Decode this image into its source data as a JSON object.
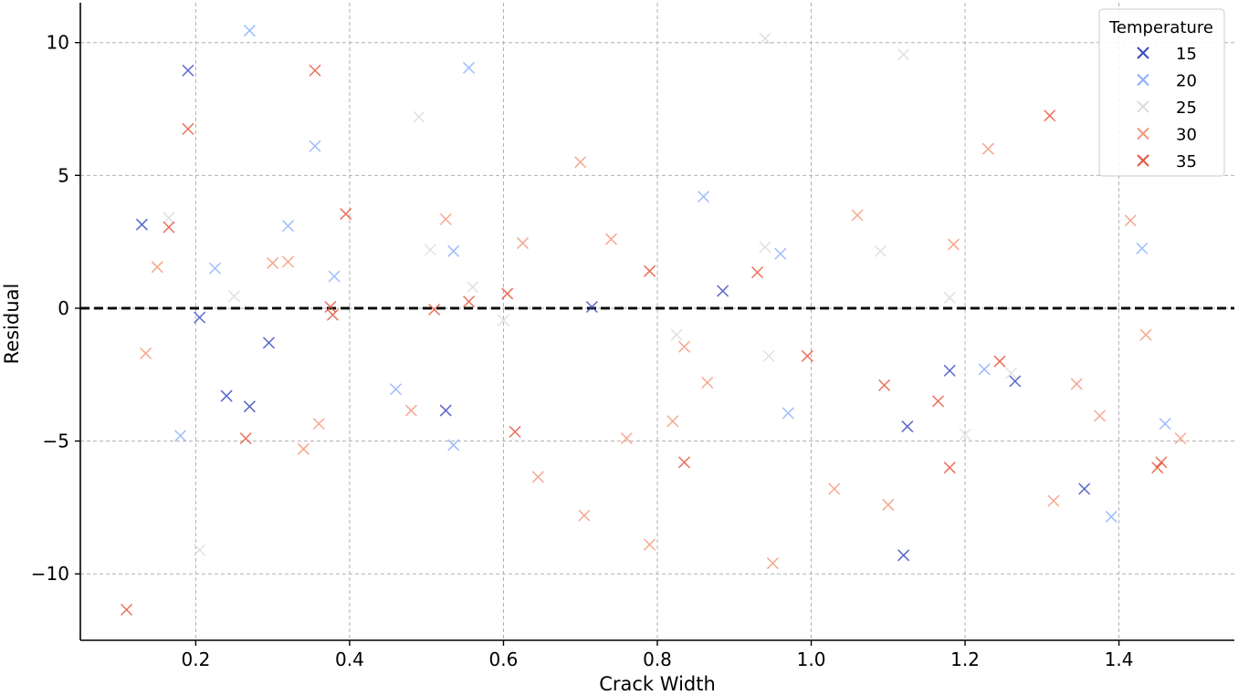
{
  "chart_data": {
    "type": "scatter",
    "title": "",
    "xlabel": "Crack Width",
    "ylabel": "Residual",
    "xlim": [
      0.05,
      1.55
    ],
    "ylim": [
      -12.5,
      11.5
    ],
    "xticks": [
      0.2,
      0.4,
      0.6,
      0.8,
      1.0,
      1.2,
      1.4
    ],
    "xtick_labels": [
      "0.2",
      "0.4",
      "0.6",
      "0.8",
      "1.0",
      "1.2",
      "1.4"
    ],
    "yticks": [
      -10,
      -5,
      0,
      5,
      10
    ],
    "ytick_labels": [
      "−10",
      "−5",
      "0",
      "5",
      "10"
    ],
    "grid": true,
    "reference_line": {
      "y": 0,
      "style": "dashed",
      "color": "#000000"
    },
    "marker": "x",
    "legend": {
      "title": "Temperature",
      "position": "top-right"
    },
    "series": [
      {
        "name": "15",
        "color": "#3B4CC0",
        "points": [
          [
            0.13,
            3.15
          ],
          [
            0.19,
            8.95
          ],
          [
            0.205,
            -0.35
          ],
          [
            0.24,
            -3.3
          ],
          [
            0.27,
            -3.7
          ],
          [
            0.295,
            -1.3
          ],
          [
            0.525,
            -3.85
          ],
          [
            0.715,
            0.05
          ],
          [
            0.885,
            0.65
          ],
          [
            1.12,
            -9.3
          ],
          [
            1.125,
            -4.45
          ],
          [
            1.18,
            -2.35
          ],
          [
            1.265,
            -2.75
          ],
          [
            1.355,
            -6.8
          ]
        ]
      },
      {
        "name": "20",
        "color": "#8DB0FE",
        "points": [
          [
            0.18,
            -4.8
          ],
          [
            0.225,
            1.5
          ],
          [
            0.27,
            10.45
          ],
          [
            0.32,
            3.1
          ],
          [
            0.355,
            6.1
          ],
          [
            0.38,
            1.2
          ],
          [
            0.46,
            -3.05
          ],
          [
            0.535,
            2.15
          ],
          [
            0.535,
            -5.15
          ],
          [
            0.555,
            9.05
          ],
          [
            0.86,
            4.2
          ],
          [
            0.96,
            2.05
          ],
          [
            0.97,
            -3.95
          ],
          [
            1.225,
            -2.3
          ],
          [
            1.43,
            2.25
          ],
          [
            1.46,
            -4.35
          ],
          [
            1.39,
            -7.85
          ]
        ]
      },
      {
        "name": "25",
        "color": "#DDDCDC",
        "points": [
          [
            0.165,
            3.4
          ],
          [
            0.205,
            -9.1
          ],
          [
            0.25,
            0.45
          ],
          [
            0.49,
            7.2
          ],
          [
            0.505,
            2.2
          ],
          [
            0.56,
            0.8
          ],
          [
            0.825,
            -1.0
          ],
          [
            0.94,
            10.15
          ],
          [
            0.94,
            2.3
          ],
          [
            0.945,
            -1.8
          ],
          [
            1.09,
            2.15
          ],
          [
            1.12,
            9.55
          ],
          [
            1.18,
            0.4
          ],
          [
            1.2,
            -4.75
          ],
          [
            1.26,
            -2.45
          ],
          [
            0.6,
            -0.45
          ]
        ]
      },
      {
        "name": "30",
        "color": "#F49A7B",
        "points": [
          [
            0.135,
            -1.7
          ],
          [
            0.15,
            1.55
          ],
          [
            0.3,
            1.7
          ],
          [
            0.32,
            1.75
          ],
          [
            0.34,
            -5.3
          ],
          [
            0.36,
            -4.35
          ],
          [
            0.48,
            -3.85
          ],
          [
            0.525,
            3.35
          ],
          [
            0.625,
            2.45
          ],
          [
            0.645,
            -6.35
          ],
          [
            0.7,
            5.5
          ],
          [
            0.705,
            -7.8
          ],
          [
            0.74,
            2.6
          ],
          [
            0.76,
            -4.9
          ],
          [
            0.79,
            -8.9
          ],
          [
            0.82,
            -4.25
          ],
          [
            0.835,
            -1.45
          ],
          [
            0.865,
            -2.8
          ],
          [
            0.95,
            -9.6
          ],
          [
            1.03,
            -6.8
          ],
          [
            1.06,
            3.5
          ],
          [
            1.1,
            -7.4
          ],
          [
            1.185,
            2.4
          ],
          [
            1.23,
            6.0
          ],
          [
            1.315,
            -7.25
          ],
          [
            1.345,
            -2.85
          ],
          [
            1.375,
            -4.05
          ],
          [
            1.415,
            3.3
          ],
          [
            1.435,
            -1.0
          ],
          [
            1.48,
            -4.9
          ]
        ]
      },
      {
        "name": "35",
        "color": "#E7553F",
        "points": [
          [
            0.11,
            -11.35
          ],
          [
            0.165,
            3.05
          ],
          [
            0.19,
            6.75
          ],
          [
            0.265,
            -4.9
          ],
          [
            0.355,
            8.95
          ],
          [
            0.375,
            0.05
          ],
          [
            0.378,
            -0.25
          ],
          [
            0.395,
            3.55
          ],
          [
            0.51,
            -0.05
          ],
          [
            0.555,
            0.25
          ],
          [
            0.605,
            0.55
          ],
          [
            0.615,
            -4.65
          ],
          [
            0.79,
            1.4
          ],
          [
            0.835,
            -5.8
          ],
          [
            0.93,
            1.35
          ],
          [
            0.995,
            -1.8
          ],
          [
            1.095,
            -2.9
          ],
          [
            1.165,
            -3.5
          ],
          [
            1.18,
            -6.0
          ],
          [
            1.245,
            -2.0
          ],
          [
            1.31,
            7.25
          ],
          [
            1.45,
            -6.0
          ],
          [
            1.455,
            -5.8
          ]
        ]
      }
    ]
  }
}
